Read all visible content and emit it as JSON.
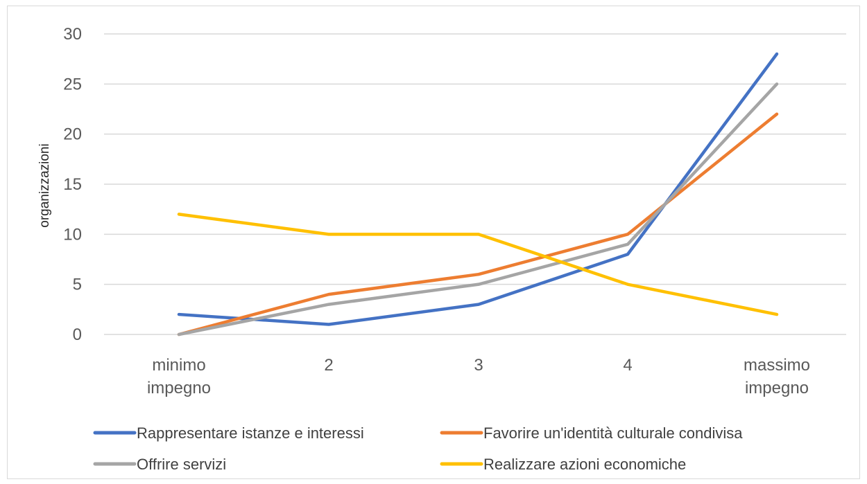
{
  "chart_data": {
    "type": "line",
    "categories": [
      [
        "minimo",
        "impegno"
      ],
      [
        "2"
      ],
      [
        "3"
      ],
      [
        "4"
      ],
      [
        "massimo",
        "impegno"
      ]
    ],
    "ylabel": "organizzazioni",
    "xlabel": "",
    "title": "",
    "ylim": [
      0,
      30
    ],
    "yticks": [
      0,
      5,
      10,
      15,
      20,
      25,
      30
    ],
    "grid": true,
    "legend_position": "bottom",
    "series": [
      {
        "name": "Rappresentare istanze e interessi",
        "color": "#4472C4",
        "values": [
          2,
          1,
          3,
          8,
          28
        ]
      },
      {
        "name": "Favorire un'identità culturale condivisa",
        "color": "#ED7D31",
        "values": [
          0,
          4,
          6,
          10,
          22
        ]
      },
      {
        "name": "Offrire servizi",
        "color": "#A5A5A5",
        "values": [
          0,
          3,
          5,
          9,
          25
        ]
      },
      {
        "name": "Realizzare azioni economiche",
        "color": "#FFC000",
        "values": [
          12,
          10,
          10,
          5,
          2
        ]
      }
    ]
  }
}
